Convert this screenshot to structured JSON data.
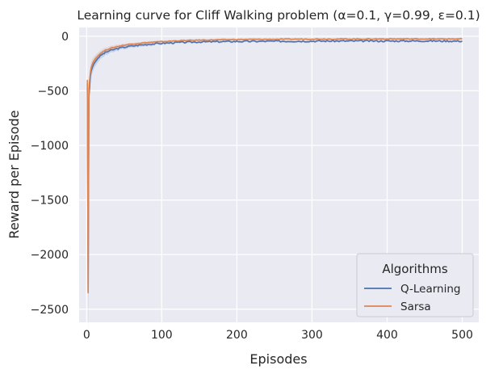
{
  "chart_data": {
    "type": "line",
    "title": "Learning curve for Cliff Walking problem (α=0.1, γ=0.99, ε=0.1)",
    "xlabel": "Episodes",
    "ylabel": "Reward per Episode",
    "xlim": [
      -10,
      522
    ],
    "ylim": [
      -2620,
      80
    ],
    "xticks": [
      0,
      100,
      200,
      300,
      400,
      500
    ],
    "yticks": [
      0,
      -500,
      -1000,
      -1500,
      -2000,
      -2500
    ],
    "xtick_labels": [
      "0",
      "100",
      "200",
      "300",
      "400",
      "500"
    ],
    "ytick_labels": [
      "0",
      "−500",
      "−1000",
      "−1500",
      "−2000",
      "−2500"
    ],
    "grid": true,
    "legend": {
      "title": "Algorithms",
      "placement": "lower-right"
    },
    "series": [
      {
        "name": "Q-Learning",
        "color": "#4c72b0",
        "x": [
          1,
          2,
          3,
          4,
          5,
          6,
          8,
          10,
          12,
          15,
          20,
          25,
          30,
          40,
          50,
          60,
          70,
          80,
          90,
          100,
          120,
          150,
          200,
          250,
          300,
          350,
          400,
          450,
          500
        ],
        "y": [
          -430,
          -2340,
          -560,
          -470,
          -360,
          -320,
          -280,
          -250,
          -230,
          -200,
          -170,
          -150,
          -135,
          -115,
          -100,
          -90,
          -82,
          -75,
          -70,
          -65,
          -58,
          -52,
          -48,
          -46,
          -45,
          -44,
          -44,
          -43,
          -45
        ]
      },
      {
        "name": "Sarsa",
        "color": "#dd8452",
        "x": [
          1,
          2,
          3,
          4,
          5,
          6,
          8,
          10,
          12,
          15,
          20,
          25,
          30,
          40,
          50,
          60,
          70,
          80,
          90,
          100,
          120,
          150,
          200,
          250,
          300,
          350,
          400,
          450,
          500
        ],
        "y": [
          -400,
          -2350,
          -480,
          -400,
          -330,
          -290,
          -250,
          -225,
          -205,
          -180,
          -150,
          -128,
          -115,
          -95,
          -82,
          -72,
          -65,
          -58,
          -54,
          -50,
          -42,
          -36,
          -30,
          -28,
          -26,
          -26,
          -25,
          -25,
          -25
        ]
      }
    ]
  }
}
